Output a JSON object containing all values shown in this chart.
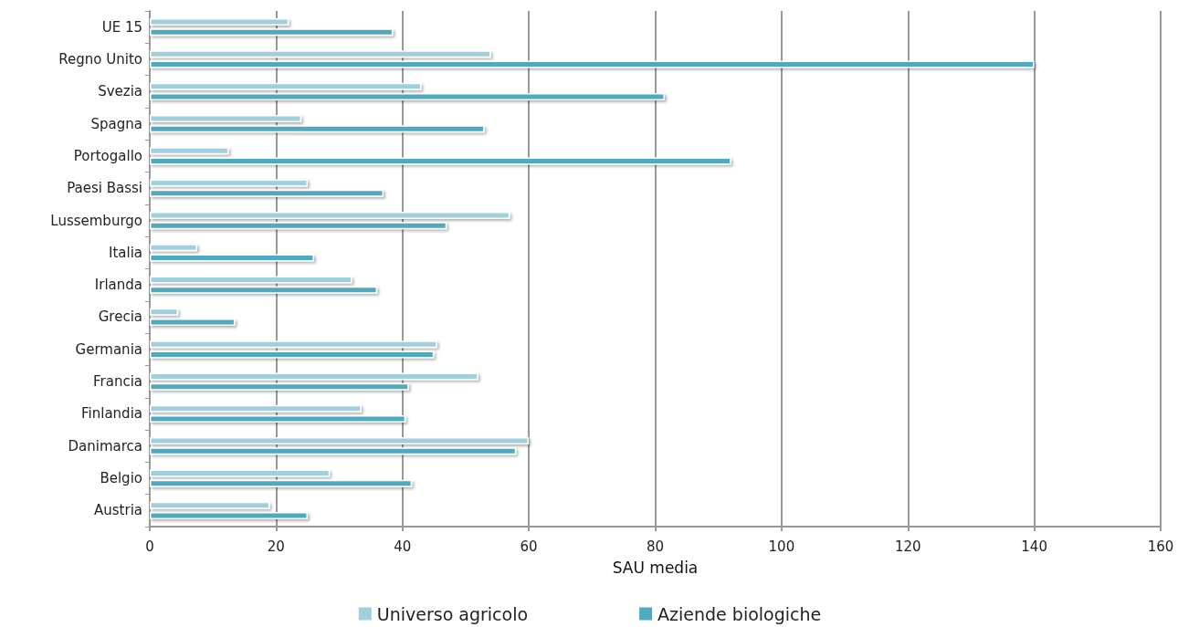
{
  "chart_data": {
    "type": "bar",
    "orientation": "horizontal",
    "xlabel": "SAU media",
    "categories": [
      "UE 15",
      "Regno Unito",
      "Svezia",
      "Spagna",
      "Portogallo",
      "Paesi Bassi",
      "Lussemburgo",
      "Italia",
      "Irlanda",
      "Grecia",
      "Germania",
      "Francia",
      "Finlandia",
      "Danimarca",
      "Belgio",
      "Austria"
    ],
    "series": [
      {
        "name": "Universo agricolo",
        "color": "#a0cfdd",
        "values": [
          22,
          54,
          43,
          24,
          12.5,
          25,
          57,
          7.5,
          32,
          4.5,
          45.5,
          52,
          33.5,
          60,
          28.5,
          19
        ]
      },
      {
        "name": "Aziende biologiche",
        "color": "#4fa9bf",
        "values": [
          38.5,
          140,
          81.5,
          53,
          92,
          37,
          47,
          26,
          36,
          13.5,
          45,
          41,
          40.5,
          58,
          41.5,
          25
        ]
      }
    ],
    "xlim": [
      0,
      160
    ],
    "xticks": [
      0,
      20,
      40,
      60,
      80,
      100,
      120,
      140,
      160
    ],
    "grid": "x",
    "legend": "bottom"
  }
}
